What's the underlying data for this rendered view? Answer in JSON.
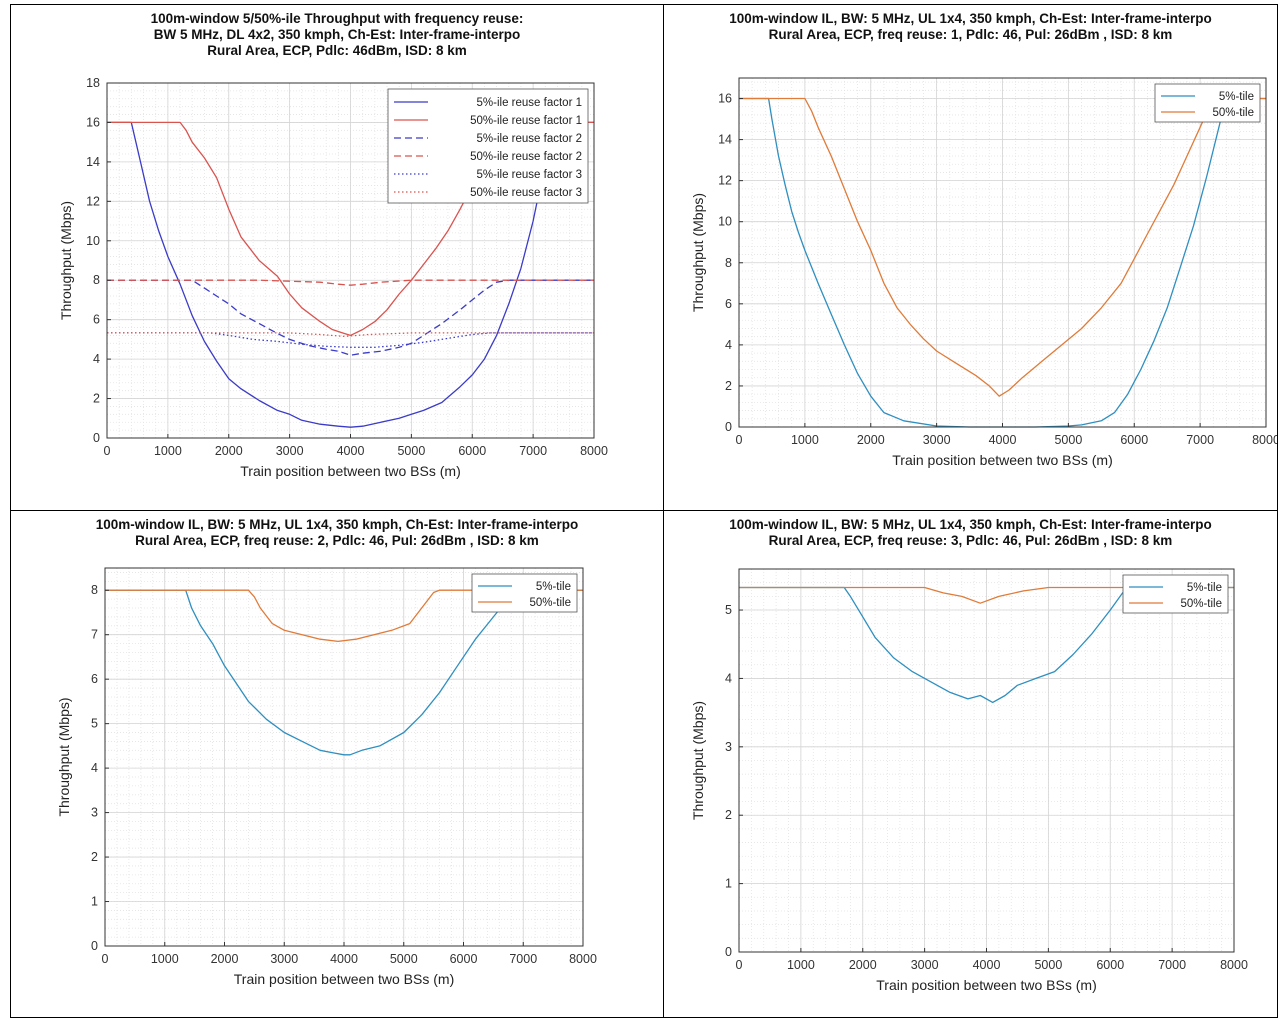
{
  "chart_data": [
    {
      "type": "line",
      "title": [
        "100m-window 5/50%-ile Throughput with frequency reuse:",
        "BW 5 MHz, DL 4x2, 350 kmph, Ch-Est: Inter-frame-interpo",
        "Rural Area, ECP, Pdlc: 46dBm, ISD: 8 km"
      ],
      "xlabel": "Train position between two BSs (m)",
      "ylabel": "Throughput (Mbps)",
      "xlim": [
        0,
        8000
      ],
      "ylim": [
        0,
        18
      ],
      "xticks": [
        0,
        1000,
        2000,
        3000,
        4000,
        5000,
        6000,
        7000,
        8000
      ],
      "yticks": [
        0,
        2,
        4,
        6,
        8,
        10,
        12,
        14,
        16,
        18
      ],
      "grid": "minor",
      "legend_position": "top-right",
      "series": [
        {
          "name": "5%-ile reuse factor 1",
          "color": "#3b3bc8",
          "style": "solid",
          "x": [
            0,
            400,
            550,
            700,
            850,
            1000,
            1200,
            1400,
            1600,
            1800,
            2000,
            2200,
            2500,
            2800,
            3000,
            3200,
            3500,
            3800,
            4000,
            4200,
            4500,
            4800,
            5000,
            5200,
            5500,
            5800,
            6000,
            6200,
            6400,
            6600,
            6800,
            7000,
            7200,
            7600,
            8000
          ],
          "y": [
            16,
            16,
            14,
            12,
            10.5,
            9.2,
            7.8,
            6.2,
            4.9,
            3.9,
            3.0,
            2.5,
            1.9,
            1.4,
            1.2,
            0.9,
            0.7,
            0.6,
            0.55,
            0.6,
            0.8,
            1.0,
            1.2,
            1.4,
            1.8,
            2.6,
            3.2,
            4.0,
            5.2,
            6.8,
            8.6,
            11.0,
            14.0,
            16,
            16
          ]
        },
        {
          "name": "50%-ile reuse factor 1",
          "color": "#d9534f",
          "style": "solid",
          "x": [
            0,
            1200,
            1300,
            1400,
            1600,
            1800,
            2000,
            2200,
            2500,
            2800,
            3000,
            3200,
            3500,
            3700,
            3900,
            4000,
            4200,
            4400,
            4600,
            4800,
            5000,
            5200,
            5400,
            5600,
            5800,
            6000,
            6200,
            6400,
            6600,
            7000,
            8000
          ],
          "y": [
            16,
            16,
            15.6,
            15.0,
            14.2,
            13.2,
            11.6,
            10.2,
            9.0,
            8.2,
            7.3,
            6.6,
            5.9,
            5.5,
            5.3,
            5.2,
            5.5,
            5.9,
            6.5,
            7.3,
            8.0,
            8.8,
            9.6,
            10.5,
            11.6,
            12.8,
            14.0,
            15.2,
            16,
            16,
            16
          ]
        },
        {
          "name": "5%-ile reuse factor 2",
          "color": "#3b3bc8",
          "style": "dashed",
          "x": [
            0,
            1400,
            1600,
            1800,
            2000,
            2200,
            2500,
            2800,
            3000,
            3300,
            3600,
            3800,
            4000,
            4200,
            4500,
            4800,
            5000,
            5200,
            5500,
            5800,
            6000,
            6200,
            6400,
            6600,
            8000
          ],
          "y": [
            8,
            8,
            7.6,
            7.2,
            6.8,
            6.3,
            5.8,
            5.3,
            5.0,
            4.7,
            4.5,
            4.4,
            4.2,
            4.3,
            4.4,
            4.6,
            4.8,
            5.2,
            5.8,
            6.5,
            7.0,
            7.5,
            7.9,
            8,
            8
          ]
        },
        {
          "name": "50%-ile reuse factor 2",
          "color": "#d9534f",
          "style": "dashed",
          "x": [
            0,
            2500,
            3000,
            3500,
            3800,
            4000,
            4200,
            4500,
            5000,
            5500,
            8000
          ],
          "y": [
            8,
            8,
            7.95,
            7.9,
            7.8,
            7.75,
            7.8,
            7.9,
            8,
            8,
            8
          ]
        },
        {
          "name": "5%-ile reuse factor 3",
          "color": "#3b3bc8",
          "style": "dotted",
          "x": [
            0,
            1700,
            2000,
            2400,
            2800,
            3200,
            3600,
            4000,
            4400,
            4800,
            5200,
            5600,
            6000,
            6300,
            8000
          ],
          "y": [
            5.33,
            5.33,
            5.2,
            5.0,
            4.9,
            4.75,
            4.65,
            4.6,
            4.6,
            4.7,
            4.85,
            5.05,
            5.25,
            5.33,
            5.33
          ]
        },
        {
          "name": "50%-ile reuse factor 3",
          "color": "#d9534f",
          "style": "dotted",
          "x": [
            0,
            3000,
            3500,
            3900,
            4300,
            5000,
            8000
          ],
          "y": [
            5.33,
            5.33,
            5.25,
            5.15,
            5.25,
            5.33,
            5.33
          ]
        }
      ]
    },
    {
      "type": "line",
      "title": [
        "100m-window IL, BW: 5 MHz, UL 1x4, 350 kmph, Ch-Est: Inter-frame-interpo",
        "Rural Area, ECP, freq reuse: 1, Pdlc: 46, Pul: 26dBm , ISD: 8 km"
      ],
      "xlabel": "Train position between two BSs (m)",
      "ylabel": "Throughput (Mbps)",
      "xlim": [
        0,
        8000
      ],
      "ylim": [
        0,
        17
      ],
      "xticks": [
        0,
        1000,
        2000,
        3000,
        4000,
        5000,
        6000,
        7000,
        8000
      ],
      "yticks": [
        0,
        2,
        4,
        6,
        8,
        10,
        12,
        14,
        16
      ],
      "grid": "minor",
      "legend_position": "top-right",
      "series": [
        {
          "name": "5%-tile",
          "color": "#2e8fc0",
          "style": "solid",
          "x": [
            0,
            450,
            500,
            600,
            700,
            800,
            900,
            1000,
            1200,
            1400,
            1600,
            1800,
            2000,
            2200,
            2500,
            3000,
            3500,
            4000,
            4500,
            5000,
            5200,
            5500,
            5700,
            5900,
            6100,
            6300,
            6500,
            6700,
            6900,
            7100,
            7300,
            7400,
            8000
          ],
          "y": [
            16,
            16,
            15.0,
            13.2,
            11.8,
            10.5,
            9.5,
            8.6,
            7.0,
            5.5,
            4.0,
            2.6,
            1.5,
            0.7,
            0.3,
            0.05,
            0.0,
            0.0,
            0.0,
            0.05,
            0.1,
            0.3,
            0.7,
            1.6,
            2.8,
            4.2,
            5.8,
            7.8,
            9.8,
            12.2,
            14.8,
            16,
            16
          ]
        },
        {
          "name": "50%-tile",
          "color": "#e07b39",
          "style": "solid",
          "x": [
            0,
            1000,
            1100,
            1200,
            1400,
            1600,
            1800,
            2000,
            2200,
            2400,
            2600,
            2800,
            3000,
            3300,
            3600,
            3800,
            3950,
            4100,
            4300,
            4600,
            4900,
            5200,
            5500,
            5800,
            6000,
            6200,
            6400,
            6600,
            6800,
            7000,
            7200,
            8000
          ],
          "y": [
            16,
            16,
            15.4,
            14.6,
            13.2,
            11.6,
            10.0,
            8.6,
            7.0,
            5.8,
            5.0,
            4.3,
            3.7,
            3.1,
            2.5,
            2.0,
            1.5,
            1.8,
            2.4,
            3.2,
            4.0,
            4.8,
            5.8,
            7.0,
            8.2,
            9.4,
            10.6,
            11.8,
            13.2,
            14.6,
            16,
            16
          ]
        }
      ]
    },
    {
      "type": "line",
      "title": [
        "100m-window IL, BW: 5 MHz, UL 1x4, 350 kmph, Ch-Est: Inter-frame-interpo",
        "Rural Area, ECP, freq reuse: 2, Pdlc: 46, Pul: 26dBm , ISD: 8 km"
      ],
      "xlabel": "Train position between two BSs (m)",
      "ylabel": "Throughput (Mbps)",
      "xlim": [
        0,
        8000
      ],
      "ylim": [
        0,
        8.5
      ],
      "xticks": [
        0,
        1000,
        2000,
        3000,
        4000,
        5000,
        6000,
        7000,
        8000
      ],
      "yticks": [
        0,
        1,
        2,
        3,
        4,
        5,
        6,
        7,
        8
      ],
      "grid": "minor",
      "legend_position": "top-right",
      "series": [
        {
          "name": "5%-tile",
          "color": "#2e8fc0",
          "style": "solid",
          "x": [
            0,
            1350,
            1450,
            1600,
            1800,
            2000,
            2200,
            2400,
            2700,
            3000,
            3300,
            3600,
            3800,
            4000,
            4100,
            4300,
            4600,
            5000,
            5300,
            5600,
            5900,
            6200,
            6500,
            6800,
            7000,
            8000
          ],
          "y": [
            8,
            8,
            7.6,
            7.2,
            6.8,
            6.3,
            5.9,
            5.5,
            5.1,
            4.8,
            4.6,
            4.4,
            4.35,
            4.3,
            4.3,
            4.4,
            4.5,
            4.8,
            5.2,
            5.7,
            6.3,
            6.9,
            7.4,
            7.9,
            8,
            8
          ]
        },
        {
          "name": "50%-tile",
          "color": "#e07b39",
          "style": "solid",
          "x": [
            0,
            2400,
            2500,
            2600,
            2800,
            3000,
            3300,
            3600,
            3900,
            4200,
            4500,
            4800,
            5100,
            5300,
            5500,
            5600,
            8000
          ],
          "y": [
            8,
            8,
            7.85,
            7.6,
            7.25,
            7.1,
            7.0,
            6.9,
            6.85,
            6.9,
            7.0,
            7.1,
            7.25,
            7.6,
            7.95,
            8,
            8
          ]
        }
      ]
    },
    {
      "type": "line",
      "title": [
        "100m-window IL, BW: 5 MHz, UL 1x4, 350 kmph, Ch-Est: Inter-frame-interpo",
        "Rural Area, ECP, freq reuse: 3, Pdlc: 46, Pul: 26dBm , ISD: 8 km"
      ],
      "xlabel": "Train position between two BSs (m)",
      "ylabel": "Throughput (Mbps)",
      "xlim": [
        0,
        8000
      ],
      "ylim": [
        0,
        5.6
      ],
      "xticks": [
        0,
        1000,
        2000,
        3000,
        4000,
        5000,
        6000,
        7000,
        8000
      ],
      "yticks": [
        0,
        1,
        2,
        3,
        4,
        5
      ],
      "grid": "minor",
      "legend_position": "top-right",
      "series": [
        {
          "name": "5%-tile",
          "color": "#2e8fc0",
          "style": "solid",
          "x": [
            0,
            1700,
            1800,
            2000,
            2200,
            2500,
            2800,
            3100,
            3400,
            3700,
            3900,
            4100,
            4300,
            4500,
            4800,
            5100,
            5400,
            5700,
            6000,
            6200,
            6400,
            8000
          ],
          "y": [
            5.33,
            5.33,
            5.2,
            4.9,
            4.6,
            4.3,
            4.1,
            3.95,
            3.8,
            3.7,
            3.75,
            3.65,
            3.75,
            3.9,
            4.0,
            4.1,
            4.35,
            4.65,
            5.0,
            5.25,
            5.33,
            5.33
          ]
        },
        {
          "name": "50%-tile",
          "color": "#e07b39",
          "style": "solid",
          "x": [
            0,
            3000,
            3300,
            3600,
            3900,
            4200,
            4600,
            5000,
            8000
          ],
          "y": [
            5.33,
            5.33,
            5.25,
            5.2,
            5.1,
            5.2,
            5.28,
            5.33,
            5.33
          ]
        }
      ]
    }
  ]
}
